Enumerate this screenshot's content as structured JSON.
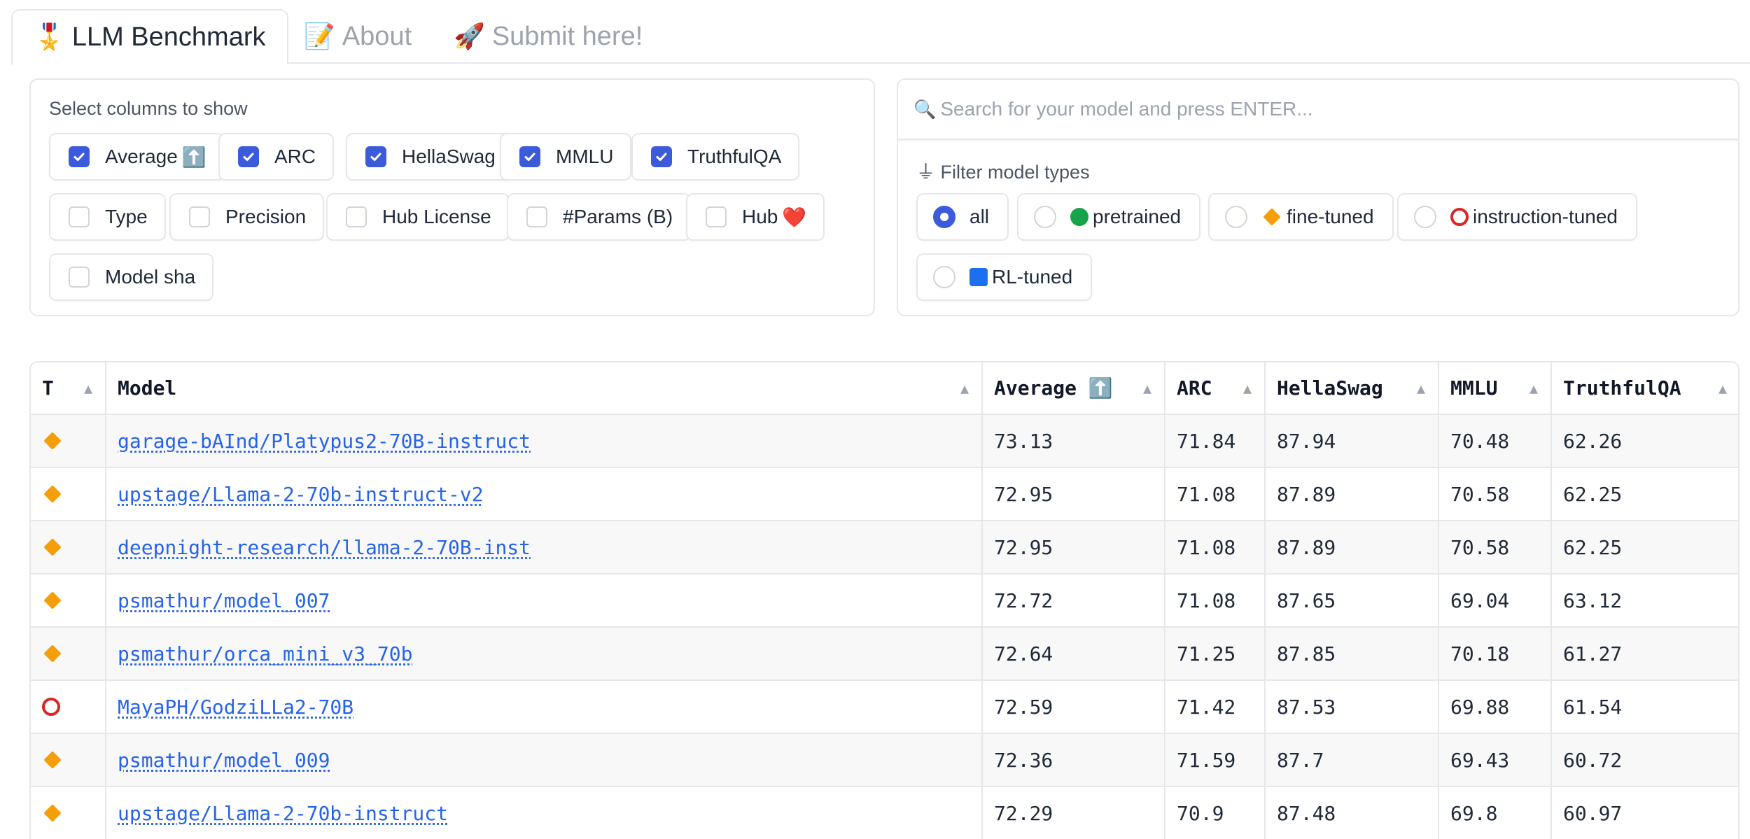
{
  "tabs": [
    {
      "emoji": "🎖️",
      "label": "LLM Benchmark",
      "active": true
    },
    {
      "emoji": "📝",
      "label": "About",
      "active": false
    },
    {
      "emoji": "🚀",
      "label": "Submit here!",
      "active": false
    }
  ],
  "columns_panel": {
    "title": "Select columns to show",
    "options": [
      {
        "label": "Average",
        "emoji": "⬆️",
        "checked": true
      },
      {
        "label": "ARC",
        "checked": true
      },
      {
        "label": "HellaSwag",
        "checked": true
      },
      {
        "label": "MMLU",
        "checked": true
      },
      {
        "label": "TruthfulQA",
        "checked": true
      },
      {
        "label": "Type",
        "checked": false
      },
      {
        "label": "Precision",
        "checked": false
      },
      {
        "label": "Hub License",
        "checked": false
      },
      {
        "label": "#Params (B)",
        "checked": false
      },
      {
        "label": "Hub",
        "emoji": "❤️",
        "checked": false
      },
      {
        "label": "Model sha",
        "checked": false
      }
    ]
  },
  "search": {
    "icon": "🔍",
    "placeholder": "Search for your model and press ENTER..."
  },
  "filter_panel": {
    "title": "⏚ Filter model types",
    "options": [
      {
        "label": "all",
        "icon": "none",
        "selected": true
      },
      {
        "label": "pretrained",
        "icon": "green-circle",
        "selected": false
      },
      {
        "label": "fine-tuned",
        "icon": "orange-diamond",
        "selected": false
      },
      {
        "label": "instruction-tuned",
        "icon": "red-ring",
        "selected": false
      },
      {
        "label": "RL-tuned",
        "icon": "blue-square",
        "selected": false
      }
    ]
  },
  "table": {
    "headers": [
      "T",
      "Model",
      "Average ⬆️",
      "ARC",
      "HellaSwag",
      "MMLU",
      "TruthfulQA"
    ],
    "rows": [
      {
        "type": "fine-tuned",
        "model": "garage-bAInd/Platypus2-70B-instruct",
        "average": "73.13",
        "arc": "71.84",
        "hellaswag": "87.94",
        "mmlu": "70.48",
        "truthfulqa": "62.26"
      },
      {
        "type": "fine-tuned",
        "model": "upstage/Llama-2-70b-instruct-v2",
        "average": "72.95",
        "arc": "71.08",
        "hellaswag": "87.89",
        "mmlu": "70.58",
        "truthfulqa": "62.25"
      },
      {
        "type": "fine-tuned",
        "model": "deepnight-research/llama-2-70B-inst",
        "average": "72.95",
        "arc": "71.08",
        "hellaswag": "87.89",
        "mmlu": "70.58",
        "truthfulqa": "62.25"
      },
      {
        "type": "fine-tuned",
        "model": "psmathur/model_007",
        "average": "72.72",
        "arc": "71.08",
        "hellaswag": "87.65",
        "mmlu": "69.04",
        "truthfulqa": "63.12"
      },
      {
        "type": "fine-tuned",
        "model": "psmathur/orca_mini_v3_70b",
        "average": "72.64",
        "arc": "71.25",
        "hellaswag": "87.85",
        "mmlu": "70.18",
        "truthfulqa": "61.27"
      },
      {
        "type": "instruction-tuned",
        "model": "MayaPH/GodziLLa2-70B",
        "average": "72.59",
        "arc": "71.42",
        "hellaswag": "87.53",
        "mmlu": "69.88",
        "truthfulqa": "61.54"
      },
      {
        "type": "fine-tuned",
        "model": "psmathur/model_009",
        "average": "72.36",
        "arc": "71.59",
        "hellaswag": "87.7",
        "mmlu": "69.43",
        "truthfulqa": "60.72"
      },
      {
        "type": "fine-tuned",
        "model": "upstage/Llama-2-70b-instruct",
        "average": "72.29",
        "arc": "70.9",
        "hellaswag": "87.48",
        "mmlu": "69.8",
        "truthfulqa": "60.97"
      }
    ]
  },
  "colors": {
    "accent": "#3b5bdb",
    "link": "#2563eb",
    "border": "#e5e7eb",
    "row_alt": "#f8f8f9"
  }
}
